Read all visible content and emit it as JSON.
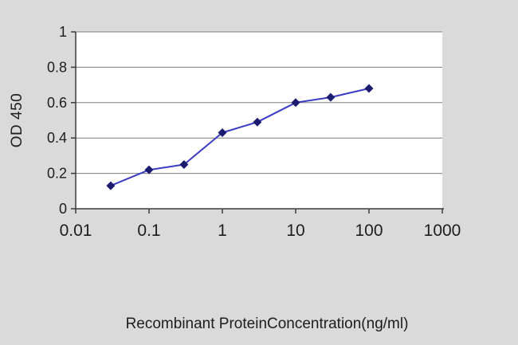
{
  "chart_data": {
    "type": "line",
    "title": "",
    "xlabel": "Recombinant ProteinConcentration(ng/ml)",
    "ylabel": "OD 450",
    "x_scale": "log",
    "xlim": [
      0.01,
      1000
    ],
    "ylim": [
      0,
      1
    ],
    "x_ticks": [
      0.01,
      0.1,
      1,
      10,
      100,
      1000
    ],
    "x_tick_labels": [
      "0.01",
      "0.1",
      "1",
      "10",
      "100",
      "1000"
    ],
    "y_ticks": [
      0,
      0.2,
      0.4,
      0.6,
      0.8,
      1
    ],
    "y_tick_labels": [
      "0",
      "0.2",
      "0.4",
      "0.6",
      "0.8",
      "1"
    ],
    "grid": "horizontal",
    "legend": "none",
    "series": [
      {
        "name": "OD 450",
        "marker": "diamond",
        "points": [
          {
            "x": 0.03,
            "y": 0.13
          },
          {
            "x": 0.1,
            "y": 0.22
          },
          {
            "x": 0.3,
            "y": 0.25
          },
          {
            "x": 1,
            "y": 0.43
          },
          {
            "x": 3,
            "y": 0.49
          },
          {
            "x": 10,
            "y": 0.6
          },
          {
            "x": 30,
            "y": 0.63
          },
          {
            "x": 100,
            "y": 0.68
          }
        ]
      }
    ],
    "colors": {
      "background": "#dadada",
      "plot_background": "#ffffff",
      "grid": "#7d7d7d",
      "axis": "#3a3a3a",
      "line": "#3c3cc4",
      "marker": "#1b1b6f",
      "text": "#1d1d1d"
    }
  }
}
